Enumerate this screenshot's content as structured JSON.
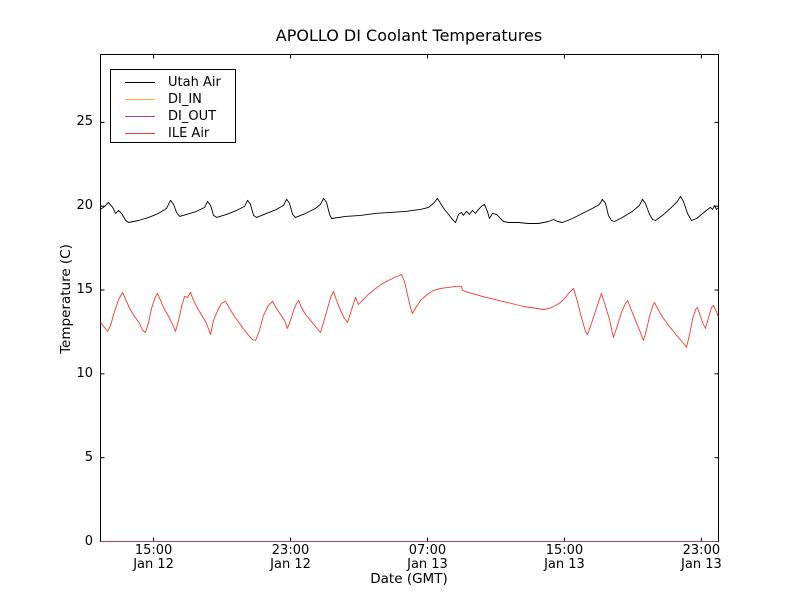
{
  "title": "APOLLO DI Coolant Temperatures",
  "xlabel": "Date (GMT)",
  "ylabel": "Temperature (C)",
  "legend": [
    {
      "label": "Utah Air",
      "color": "#000000"
    },
    {
      "label": "DI_IN",
      "color": "#ffa83e"
    },
    {
      "label": "DI_OUT",
      "color": "#9c3f9c"
    },
    {
      "label": "ILE Air",
      "color": "#ee3b33"
    }
  ],
  "chart_data": {
    "type": "line",
    "title": "APOLLO DI Coolant Temperatures",
    "xlabel": "Date (GMT)",
    "ylabel": "Temperature (C)",
    "grid": false,
    "legend_position": "upper left",
    "x_unit": "hours since Jan 12 00:00 GMT",
    "xlim": [
      11.9,
      48.0
    ],
    "ylim": [
      0,
      29.05
    ],
    "y_ticks": [
      0,
      5,
      10,
      15,
      20,
      25
    ],
    "x_ticks": [
      {
        "hour": 15,
        "time": "15:00",
        "date": "Jan 12"
      },
      {
        "hour": 23,
        "time": "23:00",
        "date": "Jan 12"
      },
      {
        "hour": 31,
        "time": "07:00",
        "date": "Jan 13"
      },
      {
        "hour": 39,
        "time": "15:00",
        "date": "Jan 13"
      },
      {
        "hour": 47,
        "time": "23:00",
        "date": "Jan 13"
      }
    ],
    "series": [
      {
        "name": "Utah Air",
        "color": "#000000",
        "width": 0.9,
        "opacity": 1,
        "points": [
          [
            11.9,
            19.81
          ],
          [
            12.14,
            19.99
          ],
          [
            12.37,
            20.23
          ],
          [
            12.61,
            19.93
          ],
          [
            12.78,
            19.57
          ],
          [
            12.96,
            19.75
          ],
          [
            13.13,
            19.57
          ],
          [
            13.37,
            19.15
          ],
          [
            13.54,
            19.03
          ],
          [
            14.12,
            19.15
          ],
          [
            14.71,
            19.33
          ],
          [
            15.29,
            19.57
          ],
          [
            15.76,
            19.87
          ],
          [
            15.99,
            20.35
          ],
          [
            16.17,
            20.11
          ],
          [
            16.34,
            19.63
          ],
          [
            16.52,
            19.39
          ],
          [
            16.93,
            19.51
          ],
          [
            17.51,
            19.69
          ],
          [
            17.98,
            19.93
          ],
          [
            18.15,
            20.29
          ],
          [
            18.33,
            20.05
          ],
          [
            18.5,
            19.45
          ],
          [
            18.68,
            19.33
          ],
          [
            19.26,
            19.51
          ],
          [
            19.85,
            19.75
          ],
          [
            20.31,
            19.99
          ],
          [
            20.49,
            20.35
          ],
          [
            20.66,
            20.11
          ],
          [
            20.84,
            19.45
          ],
          [
            21.01,
            19.33
          ],
          [
            21.6,
            19.57
          ],
          [
            22.18,
            19.81
          ],
          [
            22.59,
            20.05
          ],
          [
            22.77,
            20.41
          ],
          [
            22.94,
            20.17
          ],
          [
            23.12,
            19.51
          ],
          [
            23.29,
            19.33
          ],
          [
            23.88,
            19.57
          ],
          [
            24.46,
            19.87
          ],
          [
            24.75,
            20.11
          ],
          [
            24.93,
            20.47
          ],
          [
            25.1,
            20.23
          ],
          [
            25.28,
            19.51
          ],
          [
            25.4,
            19.27
          ],
          [
            26.21,
            19.39
          ],
          [
            27.09,
            19.45
          ],
          [
            27.96,
            19.57
          ],
          [
            28.84,
            19.63
          ],
          [
            29.71,
            19.69
          ],
          [
            30.59,
            19.81
          ],
          [
            31.06,
            19.93
          ],
          [
            31.35,
            20.17
          ],
          [
            31.58,
            20.47
          ],
          [
            31.76,
            20.17
          ],
          [
            31.99,
            19.81
          ],
          [
            32.23,
            19.51
          ],
          [
            32.46,
            19.21
          ],
          [
            32.64,
            19.03
          ],
          [
            32.81,
            19.51
          ],
          [
            32.99,
            19.63
          ],
          [
            33.1,
            19.45
          ],
          [
            33.28,
            19.69
          ],
          [
            33.45,
            19.51
          ],
          [
            33.63,
            19.75
          ],
          [
            33.8,
            19.57
          ],
          [
            33.98,
            19.81
          ],
          [
            34.15,
            19.99
          ],
          [
            34.33,
            20.11
          ],
          [
            34.5,
            19.69
          ],
          [
            34.62,
            19.27
          ],
          [
            34.8,
            19.57
          ],
          [
            35.03,
            19.51
          ],
          [
            35.26,
            19.27
          ],
          [
            35.44,
            19.09
          ],
          [
            35.73,
            19.03
          ],
          [
            36.31,
            19.03
          ],
          [
            36.9,
            18.97
          ],
          [
            37.48,
            18.97
          ],
          [
            38.07,
            19.09
          ],
          [
            38.36,
            19.21
          ],
          [
            38.6,
            19.09
          ],
          [
            38.89,
            19.03
          ],
          [
            39.47,
            19.27
          ],
          [
            40.05,
            19.57
          ],
          [
            40.64,
            19.87
          ],
          [
            41.05,
            20.11
          ],
          [
            41.22,
            20.41
          ],
          [
            41.4,
            20.17
          ],
          [
            41.57,
            19.45
          ],
          [
            41.75,
            19.15
          ],
          [
            41.92,
            19.09
          ],
          [
            42.39,
            19.33
          ],
          [
            42.97,
            19.69
          ],
          [
            43.38,
            20.05
          ],
          [
            43.56,
            20.41
          ],
          [
            43.73,
            20.17
          ],
          [
            43.97,
            19.51
          ],
          [
            44.15,
            19.21
          ],
          [
            44.32,
            19.15
          ],
          [
            44.73,
            19.45
          ],
          [
            45.19,
            19.87
          ],
          [
            45.6,
            20.29
          ],
          [
            45.78,
            20.59
          ],
          [
            45.95,
            20.29
          ],
          [
            46.19,
            19.57
          ],
          [
            46.42,
            19.15
          ],
          [
            46.72,
            19.27
          ],
          [
            47.01,
            19.51
          ],
          [
            47.3,
            19.75
          ],
          [
            47.53,
            19.93
          ],
          [
            47.65,
            19.81
          ],
          [
            47.77,
            20.05
          ],
          [
            47.88,
            19.81
          ],
          [
            48.0,
            19.93
          ]
        ]
      },
      {
        "name": "DI_IN",
        "color": "#ffa83e",
        "width": 1,
        "opacity": 0.55,
        "points": [
          [
            11.9,
            0
          ],
          [
            48.0,
            0
          ]
        ]
      },
      {
        "name": "DI_OUT",
        "color": "#9c3f9c",
        "width": 1,
        "opacity": 0.5,
        "points": [
          [
            11.9,
            0
          ],
          [
            48.0,
            0
          ]
        ]
      },
      {
        "name": "ILE Air",
        "color": "#ee3b33",
        "width": 0.9,
        "opacity": 1,
        "points": [
          [
            11.9,
            13.07
          ],
          [
            12.08,
            12.83
          ],
          [
            12.31,
            12.53
          ],
          [
            12.49,
            12.89
          ],
          [
            12.72,
            13.72
          ],
          [
            12.96,
            14.44
          ],
          [
            13.19,
            14.86
          ],
          [
            13.37,
            14.44
          ],
          [
            13.6,
            13.9
          ],
          [
            13.89,
            13.42
          ],
          [
            14.18,
            13.01
          ],
          [
            14.36,
            12.59
          ],
          [
            14.53,
            12.47
          ],
          [
            14.71,
            13.07
          ],
          [
            14.88,
            13.9
          ],
          [
            15.12,
            14.62
          ],
          [
            15.23,
            14.8
          ],
          [
            15.41,
            14.38
          ],
          [
            15.64,
            13.84
          ],
          [
            15.88,
            13.42
          ],
          [
            16.11,
            12.95
          ],
          [
            16.28,
            12.53
          ],
          [
            16.46,
            13.19
          ],
          [
            16.64,
            14.02
          ],
          [
            16.81,
            14.62
          ],
          [
            16.99,
            14.56
          ],
          [
            17.16,
            14.86
          ],
          [
            17.34,
            14.38
          ],
          [
            17.57,
            13.9
          ],
          [
            17.86,
            13.42
          ],
          [
            18.09,
            13.01
          ],
          [
            18.33,
            12.35
          ],
          [
            18.5,
            13.19
          ],
          [
            18.74,
            13.78
          ],
          [
            18.97,
            14.2
          ],
          [
            19.2,
            14.32
          ],
          [
            19.44,
            13.9
          ],
          [
            19.73,
            13.42
          ],
          [
            20.02,
            13.01
          ],
          [
            20.31,
            12.59
          ],
          [
            20.61,
            12.23
          ],
          [
            20.78,
            12.05
          ],
          [
            20.96,
            11.99
          ],
          [
            21.19,
            12.59
          ],
          [
            21.42,
            13.49
          ],
          [
            21.71,
            14.08
          ],
          [
            21.95,
            14.32
          ],
          [
            22.18,
            13.9
          ],
          [
            22.42,
            13.54
          ],
          [
            22.65,
            13.19
          ],
          [
            22.82,
            12.71
          ],
          [
            23.0,
            13.19
          ],
          [
            23.18,
            13.78
          ],
          [
            23.35,
            14.2
          ],
          [
            23.47,
            14.38
          ],
          [
            23.64,
            13.96
          ],
          [
            23.88,
            13.54
          ],
          [
            24.17,
            13.19
          ],
          [
            24.46,
            12.83
          ],
          [
            24.69,
            12.53
          ],
          [
            24.75,
            12.47
          ],
          [
            24.93,
            13.07
          ],
          [
            25.16,
            13.9
          ],
          [
            25.34,
            14.56
          ],
          [
            25.51,
            14.92
          ],
          [
            25.69,
            14.38
          ],
          [
            25.92,
            13.78
          ],
          [
            26.15,
            13.31
          ],
          [
            26.33,
            13.07
          ],
          [
            26.5,
            13.6
          ],
          [
            26.68,
            14.2
          ],
          [
            26.8,
            14.56
          ],
          [
            26.97,
            14.14
          ],
          [
            27.2,
            14.38
          ],
          [
            27.55,
            14.74
          ],
          [
            27.91,
            15.04
          ],
          [
            28.31,
            15.34
          ],
          [
            28.72,
            15.57
          ],
          [
            29.07,
            15.75
          ],
          [
            29.36,
            15.87
          ],
          [
            29.48,
            15.93
          ],
          [
            29.66,
            15.51
          ],
          [
            29.83,
            14.74
          ],
          [
            30.01,
            13.96
          ],
          [
            30.12,
            13.6
          ],
          [
            30.36,
            14.02
          ],
          [
            30.65,
            14.44
          ],
          [
            31.0,
            14.74
          ],
          [
            31.35,
            14.98
          ],
          [
            31.76,
            15.1
          ],
          [
            32.23,
            15.16
          ],
          [
            32.69,
            15.22
          ],
          [
            32.99,
            15.22
          ],
          [
            33.04,
            14.98
          ],
          [
            33.39,
            14.86
          ],
          [
            33.8,
            14.74
          ],
          [
            34.21,
            14.62
          ],
          [
            34.68,
            14.5
          ],
          [
            35.15,
            14.38
          ],
          [
            35.67,
            14.26
          ],
          [
            36.14,
            14.14
          ],
          [
            36.61,
            14.02
          ],
          [
            37.01,
            13.96
          ],
          [
            37.42,
            13.9
          ],
          [
            37.77,
            13.84
          ],
          [
            38.12,
            13.9
          ],
          [
            38.48,
            14.08
          ],
          [
            38.77,
            14.26
          ],
          [
            39.06,
            14.56
          ],
          [
            39.29,
            14.86
          ],
          [
            39.53,
            15.1
          ],
          [
            39.76,
            14.32
          ],
          [
            39.99,
            13.37
          ],
          [
            40.23,
            12.53
          ],
          [
            40.34,
            12.35
          ],
          [
            40.58,
            13.01
          ],
          [
            40.81,
            13.72
          ],
          [
            41.04,
            14.44
          ],
          [
            41.16,
            14.8
          ],
          [
            41.39,
            14.08
          ],
          [
            41.63,
            13.25
          ],
          [
            41.86,
            12.17
          ],
          [
            42.1,
            12.89
          ],
          [
            42.33,
            13.66
          ],
          [
            42.57,
            14.2
          ],
          [
            42.69,
            14.38
          ],
          [
            42.92,
            13.78
          ],
          [
            43.15,
            13.19
          ],
          [
            43.39,
            12.59
          ],
          [
            43.62,
            11.99
          ],
          [
            43.8,
            12.65
          ],
          [
            43.97,
            13.42
          ],
          [
            44.15,
            14.02
          ],
          [
            44.26,
            14.26
          ],
          [
            44.5,
            13.78
          ],
          [
            44.79,
            13.31
          ],
          [
            45.08,
            12.89
          ],
          [
            45.37,
            12.53
          ],
          [
            45.66,
            12.17
          ],
          [
            45.96,
            11.81
          ],
          [
            46.13,
            11.58
          ],
          [
            46.31,
            12.35
          ],
          [
            46.48,
            13.25
          ],
          [
            46.66,
            13.84
          ],
          [
            46.77,
            13.96
          ],
          [
            46.95,
            13.42
          ],
          [
            47.12,
            12.95
          ],
          [
            47.24,
            12.71
          ],
          [
            47.42,
            13.37
          ],
          [
            47.59,
            13.96
          ],
          [
            47.71,
            14.08
          ],
          [
            47.88,
            13.72
          ],
          [
            48.0,
            13.37
          ]
        ]
      }
    ]
  }
}
